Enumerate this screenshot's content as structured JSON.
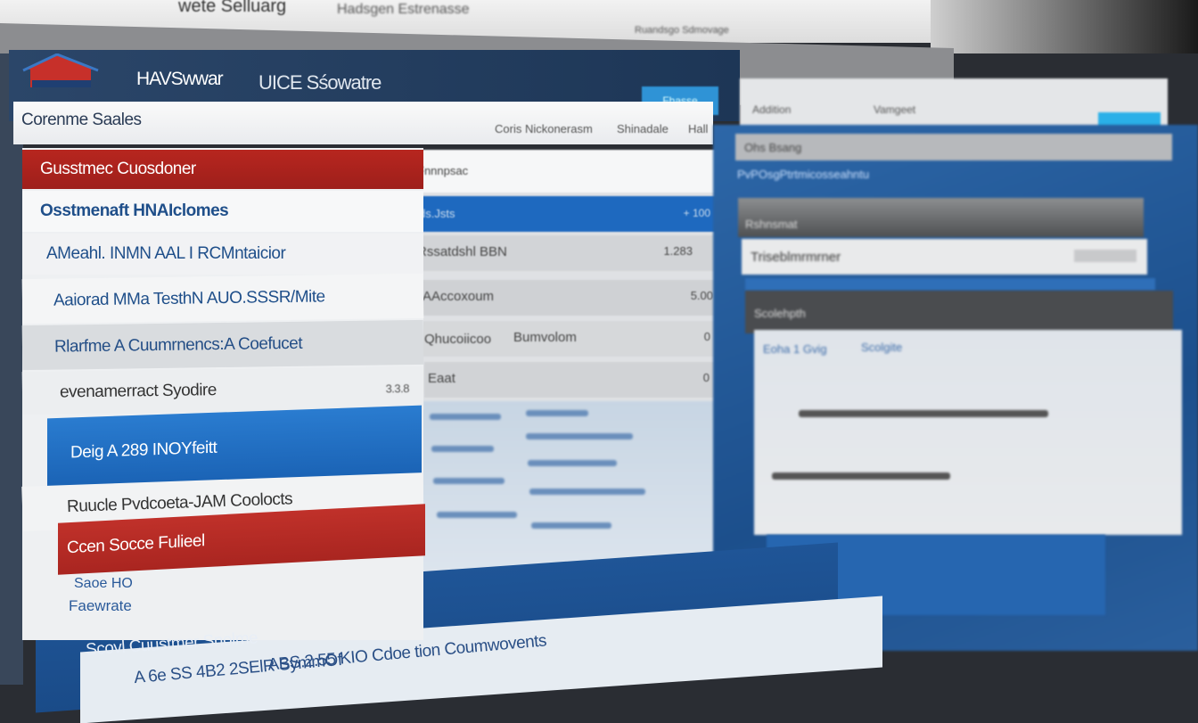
{
  "browser": {
    "tab_1": "wete Selluarg",
    "tab_2": "Hadsgen Estrenasse",
    "tab_3": "Ruandsgo Sdmovage"
  },
  "header": {
    "brand": "HAVSwwar",
    "product": "UICE Sśowatre",
    "action_button": "Fhasse"
  },
  "right_header": {
    "label_1": "Addition",
    "label_2": "Vamgeet"
  },
  "subheader": {
    "title": "Corenme Saales",
    "links": [
      "Coris Nickonerasm",
      "Shinadale",
      "Hall"
    ]
  },
  "left_list": {
    "items": [
      {
        "label": "Gusstmec Cuosdoner",
        "style": "red"
      },
      {
        "label": "Osstmenaft HNAIclomes",
        "style": "plain"
      },
      {
        "label": "AMeahl. INMN AAL I RCMntaicior",
        "style": "plain"
      },
      {
        "label": "Aaiorad MMa TesthN AUO.SSSR/Mite",
        "style": "plain"
      },
      {
        "label": "Rlarfme A Cuumrnencs:A Coefucet",
        "style": "gray"
      },
      {
        "label": "evenamerract Syodire",
        "value": "3.3.8",
        "style": "plain"
      },
      {
        "label": "Deig A 289 INOYfeitt",
        "style": "blue"
      },
      {
        "label": "Ruucle Pvdcoeta-JAM Coolocts",
        "style": "plain"
      },
      {
        "label": "Ccen Socce Fulieel",
        "style": "red"
      }
    ],
    "footer_1": "Saoe HO",
    "footer_2": "Faewrate"
  },
  "mid_table": {
    "header": "Fnnnpsac",
    "selected_row": "ds.Jsts",
    "selected_value": "+ 100",
    "rows": [
      {
        "col1": "Rssatdshl BBN",
        "col2": "",
        "value": "1.283"
      },
      {
        "col1": "AAccoxoum",
        "col2": "",
        "value": "5.00"
      },
      {
        "col1": "Qhucoiicoo",
        "col2": "Bumvolom",
        "value": "0"
      },
      {
        "col1": "Eaat",
        "col2": "",
        "value": "0"
      }
    ]
  },
  "right_panel": {
    "search": "Ohs Bsang",
    "heading": "PvPOsgPtrtmicosseahntu",
    "field_label": "Rshnsmat",
    "field_value": "Triseblmrmrner",
    "section": "Scolehpth",
    "row_1": "Eoha 1 Gvig",
    "row_2": "Scolgite"
  },
  "bottom": {
    "line_1": "Scovl Cuustmer Snolme",
    "line_2": "A 6e SS 4B2 2SElR SymmOf",
    "line_3": "ABS.2.55 KIO Cdoe tion Coumwovents"
  },
  "colors": {
    "navy": "#1d3656",
    "red": "#b3231f",
    "blue": "#1f6fc0",
    "cyan": "#2ab0e8"
  }
}
